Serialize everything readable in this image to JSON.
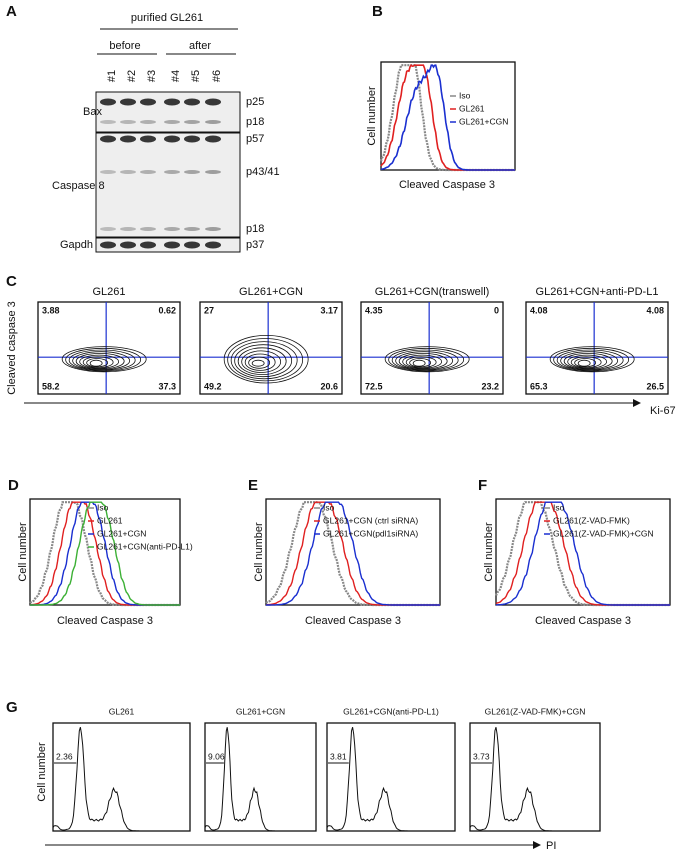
{
  "panels": {
    "A": {
      "label": "A",
      "header": "purified GL261",
      "groups": [
        "before",
        "after"
      ],
      "lanes": [
        "#1",
        "#2",
        "#3",
        "#4",
        "#5",
        "#6"
      ],
      "rows": [
        {
          "name": "Bax",
          "bands": [
            "p25",
            "p18"
          ]
        },
        {
          "name": "Caspase 8",
          "bands": [
            "p57",
            "p43/41",
            "p18"
          ]
        },
        {
          "name": "Gapdh",
          "bands": [
            "p37"
          ]
        }
      ]
    },
    "B": {
      "label": "B",
      "y_label": "Cell number",
      "x_label": "Cleaved Caspase 3",
      "legend": [
        {
          "name": "Iso",
          "color": "#888888"
        },
        {
          "name": "GL261",
          "color": "#e02020"
        },
        {
          "name": "GL261+CGN",
          "color": "#1a2fd0"
        }
      ]
    },
    "C": {
      "label": "C",
      "y_label": "Cleaved caspase 3",
      "x_label": "Ki-67",
      "plots": [
        {
          "title": "GL261",
          "quadrants": [
            3.88,
            0.62,
            58.2,
            37.3
          ]
        },
        {
          "title": "GL261+CGN",
          "quadrants": [
            27,
            3.17,
            49.2,
            20.6
          ]
        },
        {
          "title": "GL261+CGN(transwell)",
          "quadrants": [
            4.35,
            0,
            72.5,
            23.2
          ]
        },
        {
          "title": "GL261+CGN+anti-PD-L1",
          "quadrants": [
            4.08,
            4.08,
            65.3,
            26.5
          ]
        }
      ]
    },
    "D": {
      "label": "D",
      "y_label": "Cell number",
      "x_label": "Cleaved Caspase 3",
      "legend": [
        {
          "name": "Iso",
          "color": "#888888"
        },
        {
          "name": "GL261",
          "color": "#e02020"
        },
        {
          "name": "GL261+CGN",
          "color": "#1a2fd0"
        },
        {
          "name": "GL261+CGN(anti-PD-L1)",
          "color": "#3cb035"
        }
      ]
    },
    "E": {
      "label": "E",
      "y_label": "Cell number",
      "x_label": "Cleaved Caspase 3",
      "legend": [
        {
          "name": "Iso",
          "color": "#888888"
        },
        {
          "name": "GL261+CGN (ctrl siRNA)",
          "color": "#e02020"
        },
        {
          "name": "GL261+CGN(pdl1siRNA)",
          "color": "#1a2fd0"
        }
      ]
    },
    "F": {
      "label": "F",
      "y_label": "Cell number",
      "x_label": "Cleaved Caspase 3",
      "legend": [
        {
          "name": "Iso",
          "color": "#888888"
        },
        {
          "name": "GL261(Z-VAD-FMK)",
          "color": "#e02020"
        },
        {
          "name": "GL261(Z-VAD-FMK)+CGN",
          "color": "#1a2fd0"
        }
      ]
    },
    "G": {
      "label": "G",
      "y_label": "Cell number",
      "x_label": "PI",
      "plots": [
        {
          "title": "GL261",
          "gate": 2.36
        },
        {
          "title": "GL261+CGN",
          "gate": 9.06
        },
        {
          "title": "GL261+CGN(anti-PD-L1)",
          "gate": 3.81
        },
        {
          "title": "GL261(Z-VAD-FMK)+CGN",
          "gate": 3.73
        }
      ]
    }
  }
}
